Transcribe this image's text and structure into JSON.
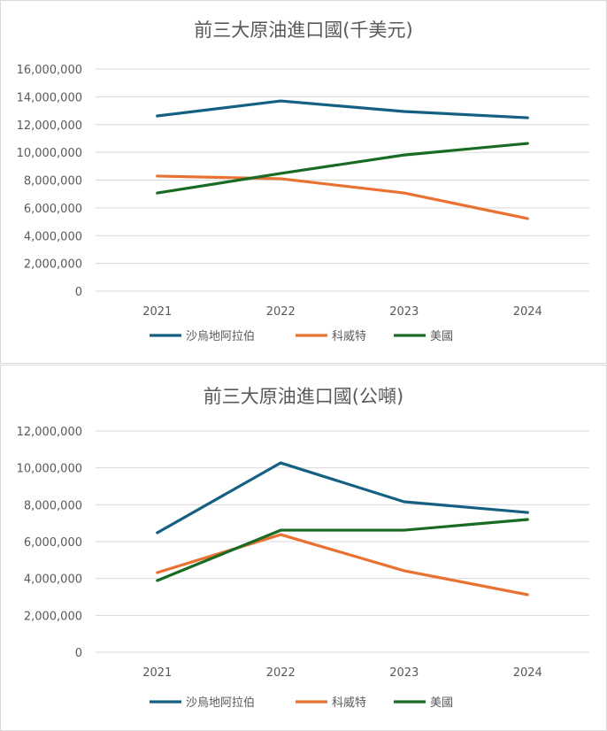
{
  "chart_data": [
    {
      "type": "line",
      "title": "前三大原油進口國(千美元)",
      "categories": [
        "2021",
        "2022",
        "2023",
        "2024"
      ],
      "ylim": [
        0,
        16000000
      ],
      "yticks": [
        "0",
        "2,000,000",
        "4,000,000",
        "6,000,000",
        "8,000,000",
        "10,000,000",
        "12,000,000",
        "14,000,000",
        "16,000,000"
      ],
      "grid": true,
      "legend": "bottom",
      "series": [
        {
          "name": "沙烏地阿拉伯",
          "color": "#156082",
          "values": [
            12620000,
            13700000,
            12940000,
            12490000
          ]
        },
        {
          "name": "科威特",
          "color": "#E97132",
          "values": [
            8290000,
            8100000,
            7070000,
            5230000
          ]
        },
        {
          "name": "美國",
          "color": "#196B24",
          "values": [
            7070000,
            8480000,
            9810000,
            10640000
          ]
        }
      ]
    },
    {
      "type": "line",
      "title": "前三大原油進口國(公噸)",
      "categories": [
        "2021",
        "2022",
        "2023",
        "2024"
      ],
      "ylim": [
        0,
        12000000
      ],
      "yticks": [
        "0",
        "2,000,000",
        "4,000,000",
        "6,000,000",
        "8,000,000",
        "10,000,000",
        "12,000,000"
      ],
      "grid": true,
      "legend": "bottom",
      "series": [
        {
          "name": "沙烏地阿拉伯",
          "color": "#156082",
          "values": [
            6480000,
            10270000,
            8160000,
            7580000
          ]
        },
        {
          "name": "科威特",
          "color": "#E97132",
          "values": [
            4320000,
            6380000,
            4420000,
            3120000
          ]
        },
        {
          "name": "美國",
          "color": "#196B24",
          "values": [
            3890000,
            6620000,
            6620000,
            7200000
          ]
        }
      ]
    }
  ]
}
